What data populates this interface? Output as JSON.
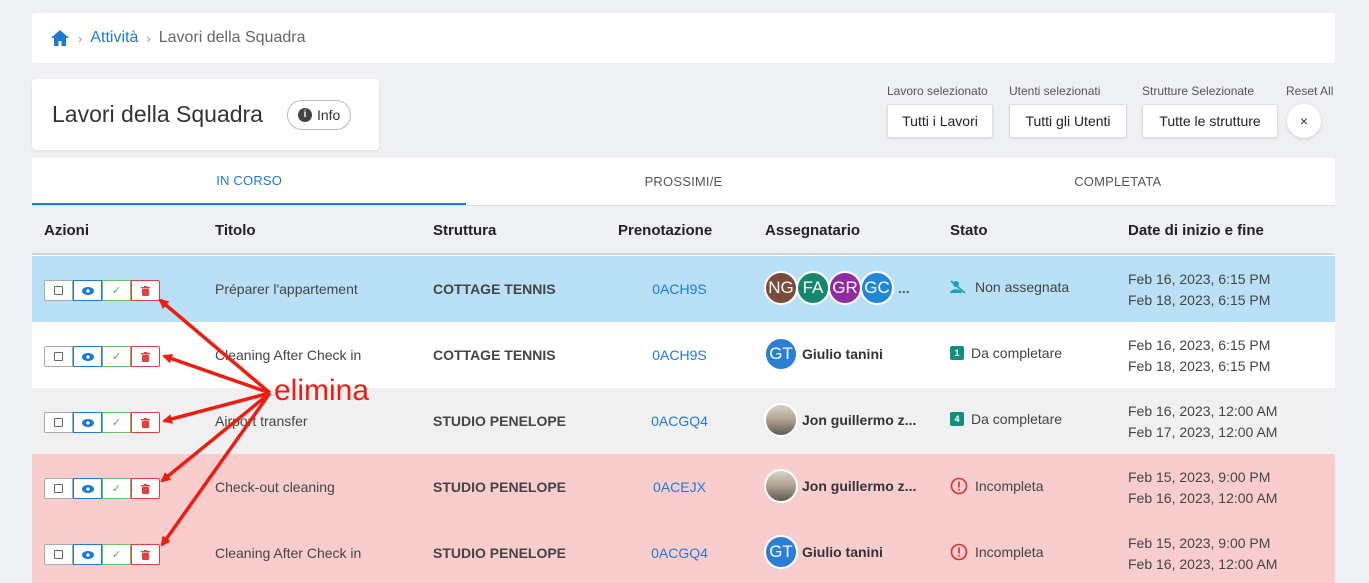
{
  "breadcrumb": {
    "items": [
      "Attività",
      "Lavori della Squadra"
    ]
  },
  "page": {
    "title": "Lavori della Squadra",
    "info_label": "Info"
  },
  "filters": [
    {
      "label": "Lavoro selezionato",
      "value": "Tutti i Lavori"
    },
    {
      "label": "Utenti selezionati",
      "value": "Tutti gli Utenti"
    },
    {
      "label": "Strutture Selezionate",
      "value": "Tutte le strutture"
    }
  ],
  "reset": {
    "label": "Reset All",
    "icon": "×"
  },
  "tabs": [
    {
      "label": "IN CORSO",
      "active": true
    },
    {
      "label": "PROSSIMI/E",
      "active": false
    },
    {
      "label": "COMPLETATA",
      "active": false
    }
  ],
  "table": {
    "headers": [
      "Azioni",
      "Titolo",
      "Struttura",
      "Prenotazione",
      "Assegnatario",
      "Stato",
      "Date di inizio e fine"
    ],
    "rows": [
      {
        "titolo": "Préparer l'appartement",
        "struttura": "COTTAGE TENNIS",
        "prenotazione": "0ACH9S",
        "assignees": [
          "NG",
          "FA",
          "GR",
          "GC"
        ],
        "assignee_more": "...",
        "stato": "Non assegnata",
        "stato_icon": "unassigned-icon",
        "start": "Feb 16, 2023, 6:15 PM",
        "end": "Feb 18, 2023, 6:15 PM",
        "bg": "#b9e0f6"
      },
      {
        "titolo": "Cleaning After Check in",
        "struttura": "COTTAGE TENNIS",
        "prenotazione": "0ACH9S",
        "assignee_initials": "GT",
        "assignee_name": "Giulio tanini",
        "stato": "Da completare",
        "stato_badge": "1",
        "start": "Feb 16, 2023, 6:15 PM",
        "end": "Feb 18, 2023, 6:15 PM",
        "bg": "#ffffff"
      },
      {
        "titolo": "Airport transfer",
        "struttura": "STUDIO PENELOPE",
        "prenotazione": "0ACGQ4",
        "assignee_name": "Jon guillermo z...",
        "stato": "Da completare",
        "stato_badge": "4",
        "start": "Feb 16, 2023, 12:00 AM",
        "end": "Feb 17, 2023, 12:00 AM",
        "bg": "#f0f0f0"
      },
      {
        "titolo": "Check-out cleaning",
        "struttura": "STUDIO PENELOPE",
        "prenotazione": "0ACEJX",
        "assignee_name": "Jon guillermo z...",
        "stato": "Incompleta",
        "stato_icon": "alert-circle-icon",
        "start": "Feb 15, 2023, 9:00 PM",
        "end": "Feb 16, 2023, 12:00 AM",
        "bg": "#f9cdcd"
      },
      {
        "titolo": "Cleaning After Check in",
        "struttura": "STUDIO PENELOPE",
        "prenotazione": "0ACGQ4",
        "assignee_initials": "GT",
        "assignee_name": "Giulio tanini",
        "stato": "Incompleta",
        "stato_icon": "alert-circle-icon",
        "start": "Feb 15, 2023, 9:00 PM",
        "end": "Feb 16, 2023, 12:00 AM",
        "bg": "#f9cdcd"
      }
    ]
  },
  "annotation": {
    "text": "elimina",
    "color": "#ee1d12"
  },
  "colors": {
    "accent": "#1f7ad6",
    "danger": "#e04040",
    "success": "#4caf50",
    "teal": "#138f7f"
  },
  "avatar_colors": {
    "NG": "#7a4a3a",
    "FA": "#16866f",
    "GR": "#8f2ca3",
    "GC": "#2387d8",
    "GT": "#2a7fd4"
  }
}
